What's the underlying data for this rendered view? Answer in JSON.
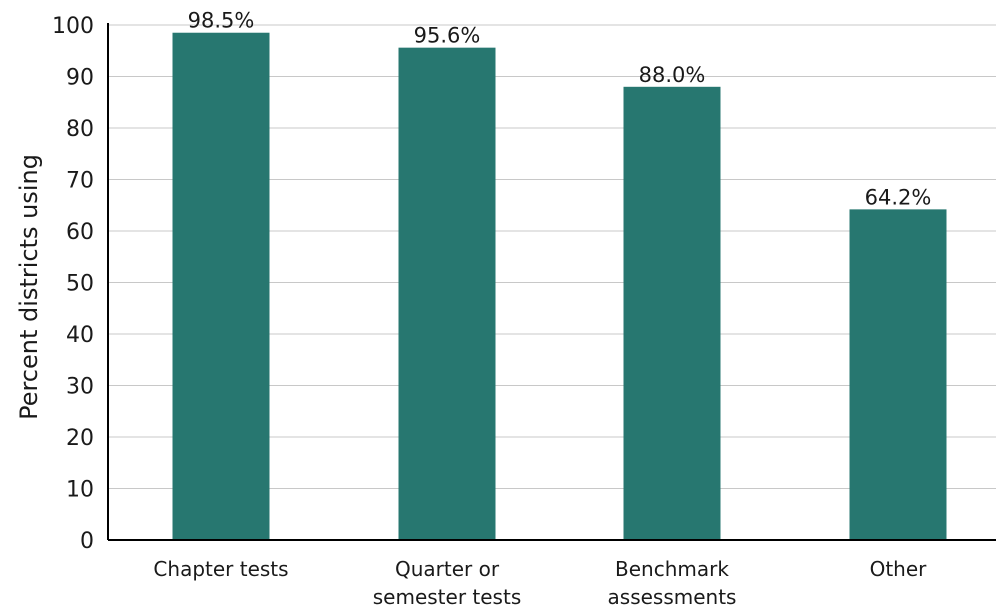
{
  "chart_data": {
    "type": "bar",
    "title": "",
    "xlabel": "",
    "ylabel": "Percent districts using",
    "categories": [
      [
        "Chapter tests"
      ],
      [
        "Quarter or",
        "semester tests"
      ],
      [
        "Benchmark",
        "assessments"
      ],
      [
        "Other"
      ]
    ],
    "values": [
      98.5,
      95.6,
      88.0,
      64.2
    ],
    "value_labels": [
      "98.5%",
      "95.6%",
      "88.0%",
      "64.2%"
    ],
    "ylim": [
      0,
      100
    ],
    "yticks": [
      "0",
      "10",
      "20",
      "30",
      "40",
      "50",
      "60",
      "70",
      "80",
      "90",
      "100"
    ],
    "grid": true,
    "legend": "none",
    "colors": {
      "bar": "#277770",
      "grid": "#c8c8c8",
      "axis": "#000000"
    }
  }
}
